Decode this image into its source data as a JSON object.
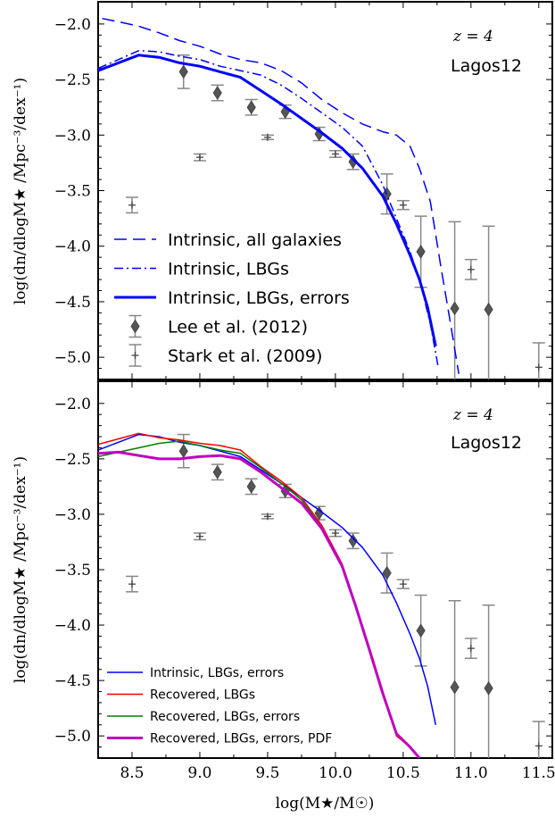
{
  "figure": {
    "xlabel": "log(M★/M☉)",
    "ylabel": "log(dn/dlogM★ /Mpc⁻³/dex⁻¹)"
  },
  "chart_data": [
    {
      "type": "line",
      "panel": "top",
      "xlim": [
        8.25,
        11.6
      ],
      "ylim": [
        -5.2,
        -1.8
      ],
      "xticks": [
        "8.5",
        "9.0",
        "9.5",
        "10.0",
        "10.5",
        "11.0",
        "11.5"
      ],
      "yticks": [
        "−2.0",
        "−2.5",
        "−3.0",
        "−3.5",
        "−4.0",
        "−4.5",
        "−5.0"
      ],
      "annotation_z": "z = 4",
      "annotation_model": "Lagos12",
      "legend_position": "lower-left",
      "series": [
        {
          "name": "Intrinsic, all galaxies",
          "color": "#0000ff",
          "style": "dashed",
          "width": 1.5,
          "x": [
            8.28,
            8.4,
            8.55,
            8.7,
            8.85,
            9.0,
            9.15,
            9.3,
            9.45,
            9.6,
            9.75,
            9.9,
            10.05,
            10.2,
            10.35,
            10.45,
            10.55,
            10.62,
            10.7,
            10.78,
            10.85,
            10.91
          ],
          "y": [
            -1.95,
            -1.98,
            -2.02,
            -2.08,
            -2.15,
            -2.2,
            -2.27,
            -2.32,
            -2.35,
            -2.42,
            -2.53,
            -2.68,
            -2.8,
            -2.9,
            -2.97,
            -3.0,
            -3.1,
            -3.3,
            -3.6,
            -4.2,
            -4.7,
            -5.15
          ]
        },
        {
          "name": "Intrinsic, LBGs",
          "color": "#0000ff",
          "style": "dashdot",
          "width": 1.5,
          "x": [
            8.25,
            8.4,
            8.55,
            8.7,
            8.85,
            9.0,
            9.15,
            9.3,
            9.45,
            9.6,
            9.75,
            9.9,
            10.05,
            10.2,
            10.35,
            10.45,
            10.55,
            10.62,
            10.7,
            10.76
          ],
          "y": [
            -2.4,
            -2.32,
            -2.24,
            -2.25,
            -2.29,
            -2.32,
            -2.38,
            -2.42,
            -2.46,
            -2.55,
            -2.67,
            -2.8,
            -2.93,
            -3.1,
            -3.45,
            -3.75,
            -4.05,
            -4.3,
            -4.7,
            -5.1
          ]
        },
        {
          "name": "Intrinsic, LBGs, errors",
          "color": "#0000ff",
          "style": "solid",
          "width": 3,
          "x": [
            8.25,
            8.4,
            8.55,
            8.7,
            8.85,
            9.0,
            9.15,
            9.3,
            9.45,
            9.6,
            9.75,
            9.9,
            10.05,
            10.2,
            10.35,
            10.45,
            10.55,
            10.62,
            10.68,
            10.74
          ],
          "y": [
            -2.42,
            -2.35,
            -2.28,
            -2.3,
            -2.35,
            -2.38,
            -2.43,
            -2.48,
            -2.6,
            -2.72,
            -2.85,
            -2.98,
            -3.12,
            -3.3,
            -3.55,
            -3.8,
            -4.08,
            -4.3,
            -4.55,
            -4.9
          ]
        }
      ],
      "points": [
        {
          "name": "Lee et al. (2012)",
          "marker": "diamond",
          "color": "#555555",
          "x": [
            8.88,
            9.13,
            9.38,
            9.63,
            9.88,
            10.13,
            10.38,
            10.63,
            10.88,
            11.13
          ],
          "y": [
            -2.43,
            -2.62,
            -2.75,
            -2.79,
            -2.99,
            -3.24,
            -3.53,
            -4.05,
            -4.56,
            -4.57
          ],
          "yerr": [
            0.15,
            0.07,
            0.07,
            0.06,
            0.06,
            0.07,
            0.18,
            0.32,
            0.78,
            0.75
          ]
        },
        {
          "name": "Stark et al. (2009)",
          "marker": "plus",
          "color": "#555555",
          "x": [
            8.5,
            9.0,
            9.5,
            10.0,
            10.5,
            11.0,
            11.5
          ],
          "y": [
            -3.63,
            -3.2,
            -3.02,
            -3.17,
            -3.63,
            -4.21,
            -5.09
          ],
          "yerr": [
            0.07,
            0.03,
            0.02,
            0.03,
            0.04,
            0.09,
            0.22
          ]
        }
      ]
    },
    {
      "type": "line",
      "panel": "bottom",
      "xlim": [
        8.25,
        11.6
      ],
      "ylim": [
        -5.2,
        -1.8
      ],
      "xticks": [
        "8.5",
        "9.0",
        "9.5",
        "10.0",
        "10.5",
        "11.0",
        "11.5"
      ],
      "yticks": [
        "−2.0",
        "−2.5",
        "−3.0",
        "−3.5",
        "−4.0",
        "−4.5",
        "−5.0"
      ],
      "annotation_z": "z = 4",
      "annotation_model": "Lagos12",
      "legend_position": "lower-left",
      "series": [
        {
          "name": "Intrinsic, LBGs, errors",
          "color": "#0000ff",
          "style": "solid",
          "width": 1.5,
          "x": [
            8.25,
            8.4,
            8.55,
            8.7,
            8.85,
            9.0,
            9.15,
            9.3,
            9.45,
            9.6,
            9.75,
            9.9,
            10.05,
            10.2,
            10.35,
            10.45,
            10.55,
            10.62,
            10.68,
            10.74
          ],
          "y": [
            -2.42,
            -2.35,
            -2.28,
            -2.3,
            -2.35,
            -2.38,
            -2.43,
            -2.48,
            -2.6,
            -2.72,
            -2.85,
            -2.98,
            -3.12,
            -3.3,
            -3.55,
            -3.8,
            -4.08,
            -4.3,
            -4.55,
            -4.9
          ]
        },
        {
          "name": "Recovered, LBGs",
          "color": "#ff0000",
          "style": "solid",
          "width": 1.5,
          "x": [
            8.25,
            8.4,
            8.55,
            8.7,
            8.85,
            9.0,
            9.15,
            9.3,
            9.45,
            9.6,
            9.75,
            9.9,
            10.05,
            10.15,
            10.25,
            10.35,
            10.45,
            10.55,
            10.62
          ],
          "y": [
            -2.37,
            -2.32,
            -2.27,
            -2.31,
            -2.33,
            -2.36,
            -2.38,
            -2.42,
            -2.57,
            -2.7,
            -2.85,
            -3.1,
            -3.45,
            -3.82,
            -4.2,
            -4.6,
            -5.0,
            -5.1,
            -5.2
          ]
        },
        {
          "name": "Recovered, LBGs, errors",
          "color": "#008000",
          "style": "solid",
          "width": 1.5,
          "x": [
            8.25,
            8.4,
            8.55,
            8.7,
            8.85,
            9.0,
            9.15,
            9.3,
            9.45,
            9.6,
            9.75,
            9.9,
            10.05,
            10.15,
            10.25,
            10.35,
            10.45,
            10.55,
            10.62
          ],
          "y": [
            -2.48,
            -2.44,
            -2.4,
            -2.36,
            -2.34,
            -2.38,
            -2.42,
            -2.45,
            -2.58,
            -2.72,
            -2.87,
            -3.12,
            -3.47,
            -3.83,
            -4.22,
            -4.62,
            -4.98,
            -5.1,
            -5.2
          ]
        },
        {
          "name": "Recovered, LBGs, errors, PDF",
          "color": "#c000c0",
          "style": "solid",
          "width": 3,
          "x": [
            8.25,
            8.4,
            8.55,
            8.7,
            8.85,
            9.0,
            9.15,
            9.3,
            9.45,
            9.6,
            9.75,
            9.9,
            10.05,
            10.15,
            10.25,
            10.35,
            10.45,
            10.55,
            10.62
          ],
          "y": [
            -2.45,
            -2.44,
            -2.47,
            -2.5,
            -2.5,
            -2.48,
            -2.47,
            -2.5,
            -2.62,
            -2.76,
            -2.9,
            -3.13,
            -3.47,
            -3.83,
            -4.22,
            -4.62,
            -4.98,
            -5.1,
            -5.2
          ]
        }
      ],
      "points": [
        {
          "name": "",
          "marker": "diamond",
          "color": "#555555",
          "x": [
            8.88,
            9.13,
            9.38,
            9.63,
            9.88,
            10.13,
            10.38,
            10.63,
            10.88,
            11.13
          ],
          "y": [
            -2.43,
            -2.62,
            -2.75,
            -2.79,
            -2.99,
            -3.24,
            -3.53,
            -4.05,
            -4.56,
            -4.57
          ],
          "yerr": [
            0.15,
            0.07,
            0.07,
            0.06,
            0.06,
            0.07,
            0.18,
            0.32,
            0.78,
            0.75
          ]
        },
        {
          "name": "",
          "marker": "plus",
          "color": "#555555",
          "x": [
            8.5,
            9.0,
            9.5,
            10.0,
            10.5,
            11.0,
            11.5
          ],
          "y": [
            -3.63,
            -3.2,
            -3.02,
            -3.17,
            -3.63,
            -4.21,
            -5.09
          ],
          "yerr": [
            0.07,
            0.03,
            0.02,
            0.03,
            0.04,
            0.09,
            0.22
          ]
        }
      ]
    }
  ]
}
